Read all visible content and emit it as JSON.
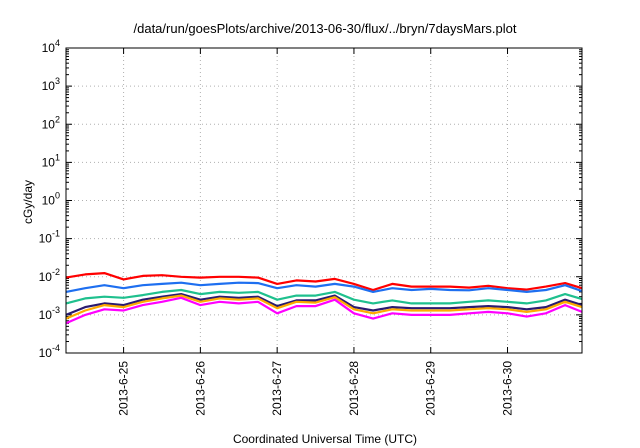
{
  "chart_data": {
    "type": "line",
    "title": "/data/run/goesPlots/archive/2013-06-30/flux/../bryn/7daysMars.plot",
    "xlabel": "Coordinated Universal Time (UTC)",
    "ylabel": "cGy/day",
    "yscale": "log",
    "ylim": [
      0.0001,
      10000
    ],
    "xlim": [
      -0.75,
      5.97
    ],
    "grid": true,
    "y_ticks": [
      {
        "base": "10",
        "exp": "-4",
        "value": 0.0001
      },
      {
        "base": "10",
        "exp": "-3",
        "value": 0.001
      },
      {
        "base": "10",
        "exp": "-2",
        "value": 0.01
      },
      {
        "base": "10",
        "exp": "-1",
        "value": 0.1
      },
      {
        "base": "10",
        "exp": "0",
        "value": 1
      },
      {
        "base": "10",
        "exp": "1",
        "value": 10
      },
      {
        "base": "10",
        "exp": "2",
        "value": 100
      },
      {
        "base": "10",
        "exp": "3",
        "value": 1000
      },
      {
        "base": "10",
        "exp": "4",
        "value": 10000
      }
    ],
    "x_ticks": [
      {
        "label": "2013-6-25",
        "value": 0
      },
      {
        "label": "2013-6-26",
        "value": 1
      },
      {
        "label": "2013-6-27",
        "value": 2
      },
      {
        "label": "2013-6-28",
        "value": 3
      },
      {
        "label": "2013-6-29",
        "value": 4
      },
      {
        "label": "2013-6-30",
        "value": 5
      }
    ],
    "x": [
      -0.75,
      -0.5,
      -0.25,
      0.0,
      0.25,
      0.5,
      0.75,
      1.0,
      1.25,
      1.5,
      1.75,
      2.0,
      2.25,
      2.5,
      2.75,
      3.0,
      3.25,
      3.5,
      3.75,
      4.0,
      4.25,
      4.5,
      4.75,
      5.0,
      5.25,
      5.5,
      5.75,
      5.97
    ],
    "series": [
      {
        "color": "#ff0000",
        "values": [
          0.0095,
          0.0115,
          0.0125,
          0.0085,
          0.0105,
          0.011,
          0.01,
          0.0095,
          0.01,
          0.01,
          0.0095,
          0.0065,
          0.008,
          0.0075,
          0.0088,
          0.0065,
          0.0045,
          0.0065,
          0.0055,
          0.0055,
          0.0055,
          0.0052,
          0.0058,
          0.005,
          0.0046,
          0.0055,
          0.0068,
          0.005
        ]
      },
      {
        "color": "#1e6ff0",
        "values": [
          0.004,
          0.005,
          0.006,
          0.005,
          0.006,
          0.0065,
          0.007,
          0.006,
          0.0065,
          0.007,
          0.0068,
          0.005,
          0.006,
          0.0055,
          0.0065,
          0.0055,
          0.004,
          0.005,
          0.0045,
          0.0048,
          0.0045,
          0.0044,
          0.005,
          0.0045,
          0.004,
          0.0045,
          0.006,
          0.0042
        ]
      },
      {
        "color": "#1fc08e",
        "values": [
          0.002,
          0.0027,
          0.003,
          0.0028,
          0.0033,
          0.004,
          0.0045,
          0.0035,
          0.004,
          0.0038,
          0.004,
          0.0025,
          0.0032,
          0.0032,
          0.004,
          0.0025,
          0.002,
          0.0024,
          0.002,
          0.002,
          0.002,
          0.0022,
          0.0024,
          0.0022,
          0.002,
          0.0024,
          0.0035,
          0.0026
        ]
      },
      {
        "color": "#2a1a70",
        "values": [
          0.001,
          0.0016,
          0.002,
          0.0018,
          0.0025,
          0.003,
          0.0035,
          0.0025,
          0.003,
          0.0028,
          0.003,
          0.0017,
          0.0024,
          0.0024,
          0.0032,
          0.0016,
          0.0013,
          0.0016,
          0.0015,
          0.0015,
          0.0015,
          0.0016,
          0.0017,
          0.0016,
          0.0014,
          0.0016,
          0.0025,
          0.0018
        ]
      },
      {
        "color": "#ffaa00",
        "values": [
          0.0008,
          0.0013,
          0.0018,
          0.0016,
          0.0022,
          0.0027,
          0.0032,
          0.0022,
          0.0027,
          0.0025,
          0.0027,
          0.0015,
          0.0022,
          0.0021,
          0.0029,
          0.0014,
          0.0011,
          0.0014,
          0.0013,
          0.0013,
          0.0013,
          0.0014,
          0.0015,
          0.0014,
          0.0012,
          0.0014,
          0.0022,
          0.0016
        ]
      },
      {
        "color": "#ff00ff",
        "values": [
          0.0006,
          0.001,
          0.0014,
          0.0013,
          0.0018,
          0.0022,
          0.0028,
          0.0018,
          0.0022,
          0.002,
          0.0022,
          0.0011,
          0.0017,
          0.0017,
          0.0025,
          0.0011,
          0.0008,
          0.0011,
          0.001,
          0.001,
          0.001,
          0.0011,
          0.0012,
          0.0011,
          0.0009,
          0.0011,
          0.0018,
          0.0012
        ]
      }
    ]
  }
}
